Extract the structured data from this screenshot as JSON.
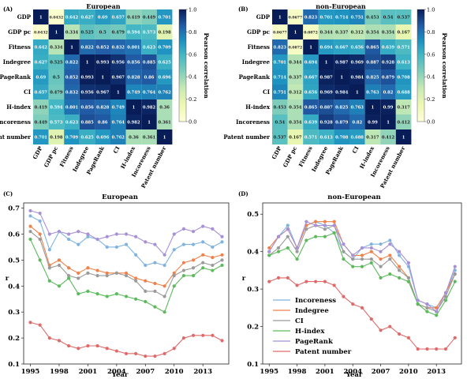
{
  "palette": {
    "low": "#ffffd9",
    "mid1": "#c7e9b4",
    "mid2": "#7fcdbb",
    "mid3": "#41b6c4",
    "mid4": "#1d91c0",
    "mid5": "#225ea8",
    "high": "#081d58",
    "line_colors": [
      "#7fb3e0",
      "#f0814a",
      "#9a9a9a",
      "#5cba5c",
      "#a890d8",
      "#e06a6a"
    ]
  },
  "chart_data": [
    {
      "panel": "(A)",
      "type": "heatmap",
      "title": "European",
      "labels": [
        "GDP",
        "GDP pc",
        "Fitness",
        "Indegree",
        "PageRank",
        "CI",
        "H-index",
        "Incoreness",
        "Patent number"
      ],
      "values": [
        [
          "1",
          "0.0432",
          "0.642",
          "0.627",
          "0.69",
          "0.657",
          "0.419",
          "0.449",
          "0.701"
        ],
        [
          "0.0432",
          "1",
          "0.334",
          "0.525",
          "0.5",
          "0.479",
          "0.594",
          "0.573",
          "0.198"
        ],
        [
          "0.642",
          "0.334",
          "1",
          "0.822",
          "0.852",
          "0.832",
          "0.801",
          "0.623",
          "0.709"
        ],
        [
          "0.627",
          "0.525",
          "0.822",
          "1",
          "0.993",
          "0.956",
          "0.856",
          "0.885",
          "0.625"
        ],
        [
          "0.69",
          "0.5",
          "0.852",
          "0.993",
          "1",
          "0.967",
          "0.828",
          "0.86",
          "0.696"
        ],
        [
          "0.657",
          "0.479",
          "0.832",
          "0.956",
          "0.967",
          "1",
          "0.749",
          "0.764",
          "0.762"
        ],
        [
          "0.419",
          "0.594",
          "0.801",
          "0.856",
          "0.828",
          "0.749",
          "1",
          "0.982",
          "0.36"
        ],
        [
          "0.449",
          "0.573",
          "0.623",
          "0.885",
          "0.86",
          "0.764",
          "0.982",
          "1",
          "0.361"
        ],
        [
          "0.701",
          "0.198",
          "0.709",
          "0.625",
          "0.696",
          "0.762",
          "0.36",
          "0.361",
          "1"
        ]
      ],
      "colorbar": {
        "label": "Pearson correlation",
        "ticks": [
          "0.0",
          "0.2",
          "0.4",
          "0.6",
          "0.8",
          "1.0"
        ],
        "range": [
          0,
          1
        ]
      }
    },
    {
      "panel": "(B)",
      "type": "heatmap",
      "title": "non-European",
      "labels": [
        "GDP",
        "GDP pc",
        "Fitness",
        "Indegree",
        "PageRank",
        "CI",
        "H-index",
        "Incoreness",
        "Patent number"
      ],
      "values": [
        [
          "1",
          "0.0677",
          "0.823",
          "0.701",
          "0.714",
          "0.751",
          "0.453",
          "0.54",
          "0.537"
        ],
        [
          "0.0677",
          "1",
          "0.0872",
          "0.344",
          "0.337",
          "0.312",
          "0.354",
          "0.354",
          "0.167"
        ],
        [
          "0.823",
          "0.0872",
          "1",
          "0.694",
          "0.667",
          "0.656",
          "0.865",
          "0.639",
          "0.571"
        ],
        [
          "0.701",
          "0.344",
          "0.694",
          "1",
          "0.987",
          "0.969",
          "0.887",
          "0.928",
          "0.613"
        ],
        [
          "0.714",
          "0.337",
          "0.667",
          "0.987",
          "1",
          "0.984",
          "0.825",
          "0.879",
          "0.708"
        ],
        [
          "0.751",
          "0.312",
          "0.656",
          "0.969",
          "0.984",
          "1",
          "0.763",
          "0.82",
          "0.688"
        ],
        [
          "0.453",
          "0.354",
          "0.865",
          "0.887",
          "0.825",
          "0.763",
          "1",
          "0.99",
          "0.317"
        ],
        [
          "0.54",
          "0.354",
          "0.639",
          "0.928",
          "0.879",
          "0.82",
          "0.99",
          "1",
          "0.412"
        ],
        [
          "0.537",
          "0.167",
          "0.571",
          "0.613",
          "0.708",
          "0.688",
          "0.317",
          "0.412",
          "1"
        ]
      ],
      "colorbar": {
        "label": "Pearson correlation",
        "ticks": [
          "0.0",
          "0.2",
          "0.4",
          "0.6",
          "0.8",
          "1.0"
        ],
        "range": [
          0,
          1
        ]
      }
    },
    {
      "panel": "(C)",
      "type": "line",
      "title": "European",
      "xlabel": "Year",
      "ylabel": "r",
      "xlim": [
        1994.3,
        2015.7
      ],
      "ylim": [
        0.1,
        0.72
      ],
      "xticks": [
        1995,
        1998,
        2001,
        2004,
        2007,
        2010,
        2013
      ],
      "yticks": [
        0.1,
        0.2,
        0.3,
        0.4,
        0.5,
        0.6,
        0.7
      ],
      "x": [
        1995,
        1996,
        1997,
        1998,
        1999,
        2000,
        2001,
        2002,
        2003,
        2004,
        2005,
        2006,
        2007,
        2008,
        2009,
        2010,
        2011,
        2012,
        2013,
        2014,
        2015
      ],
      "series": [
        {
          "name": "Incoreness",
          "values": [
            0.67,
            0.65,
            0.54,
            0.61,
            0.58,
            0.56,
            0.59,
            0.58,
            0.55,
            0.55,
            0.56,
            0.52,
            0.48,
            0.49,
            0.48,
            0.54,
            0.56,
            0.56,
            0.57,
            0.55,
            0.57
          ]
        },
        {
          "name": "Indegree",
          "values": [
            0.63,
            0.6,
            0.48,
            0.5,
            0.47,
            0.45,
            0.47,
            0.46,
            0.45,
            0.45,
            0.45,
            0.43,
            0.42,
            0.41,
            0.4,
            0.45,
            0.49,
            0.5,
            0.52,
            0.51,
            0.52
          ]
        },
        {
          "name": "CI",
          "values": [
            0.61,
            0.58,
            0.47,
            0.48,
            0.44,
            0.43,
            0.45,
            0.44,
            0.44,
            0.45,
            0.44,
            0.42,
            0.38,
            0.38,
            0.36,
            0.44,
            0.46,
            0.47,
            0.49,
            0.48,
            0.5
          ]
        },
        {
          "name": "H-index",
          "values": [
            0.58,
            0.5,
            0.42,
            0.4,
            0.43,
            0.37,
            0.38,
            0.37,
            0.36,
            0.37,
            0.36,
            0.35,
            0.34,
            0.32,
            0.3,
            0.4,
            0.44,
            0.44,
            0.47,
            0.46,
            0.48
          ]
        },
        {
          "name": "PageRank",
          "values": [
            0.69,
            0.68,
            0.6,
            0.61,
            0.6,
            0.61,
            0.6,
            0.58,
            0.59,
            0.6,
            0.6,
            0.59,
            0.57,
            0.56,
            0.52,
            0.6,
            0.62,
            0.61,
            0.63,
            0.62,
            0.59
          ]
        },
        {
          "name": "Patent number",
          "values": [
            0.26,
            0.25,
            0.2,
            0.19,
            0.17,
            0.16,
            0.17,
            0.17,
            0.16,
            0.15,
            0.14,
            0.14,
            0.13,
            0.13,
            0.14,
            0.16,
            0.2,
            0.21,
            0.21,
            0.21,
            0.19
          ]
        }
      ]
    },
    {
      "panel": "(D)",
      "type": "line",
      "title": "non-European",
      "xlabel": "Year",
      "ylabel": "r",
      "xlim": [
        1994.3,
        2015.7
      ],
      "ylim": [
        0.1,
        0.53
      ],
      "xticks": [
        1995,
        1998,
        2001,
        2004,
        2007,
        2010,
        2013
      ],
      "yticks": [
        0.1,
        0.2,
        0.3,
        0.4,
        0.5
      ],
      "legend": "lower-left",
      "x": [
        1995,
        1996,
        1997,
        1998,
        1999,
        2000,
        2001,
        2002,
        2003,
        2004,
        2005,
        2006,
        2007,
        2008,
        2009,
        2010,
        2011,
        2012,
        2013,
        2014,
        2015
      ],
      "series": [
        {
          "name": "Incoreness",
          "values": [
            0.4,
            0.44,
            0.47,
            0.41,
            0.47,
            0.48,
            0.47,
            0.45,
            0.4,
            0.38,
            0.41,
            0.42,
            0.42,
            0.43,
            0.39,
            0.36,
            0.27,
            0.26,
            0.25,
            0.29,
            0.35
          ]
        },
        {
          "name": "Indegree",
          "values": [
            0.41,
            0.44,
            0.46,
            0.41,
            0.47,
            0.48,
            0.48,
            0.48,
            0.42,
            0.39,
            0.39,
            0.4,
            0.38,
            0.39,
            0.36,
            0.33,
            0.26,
            0.25,
            0.25,
            0.29,
            0.34
          ]
        },
        {
          "name": "CI",
          "values": [
            0.39,
            0.41,
            0.44,
            0.4,
            0.46,
            0.47,
            0.46,
            0.47,
            0.4,
            0.38,
            0.38,
            0.38,
            0.36,
            0.38,
            0.35,
            0.33,
            0.26,
            0.25,
            0.24,
            0.28,
            0.34
          ]
        },
        {
          "name": "H-index",
          "values": [
            0.39,
            0.4,
            0.41,
            0.38,
            0.43,
            0.44,
            0.44,
            0.45,
            0.38,
            0.36,
            0.36,
            0.37,
            0.33,
            0.34,
            0.33,
            0.32,
            0.26,
            0.24,
            0.23,
            0.27,
            0.32
          ]
        },
        {
          "name": "PageRank",
          "values": [
            0.4,
            0.44,
            0.46,
            0.41,
            0.48,
            0.47,
            0.47,
            0.47,
            0.42,
            0.39,
            0.41,
            0.41,
            0.4,
            0.42,
            0.4,
            0.37,
            0.27,
            0.26,
            0.24,
            0.29,
            0.36
          ]
        },
        {
          "name": "Patent number",
          "values": [
            0.32,
            0.33,
            0.33,
            0.31,
            0.32,
            0.32,
            0.32,
            0.31,
            0.28,
            0.26,
            0.25,
            0.22,
            0.19,
            0.2,
            0.18,
            0.17,
            0.14,
            0.14,
            0.14,
            0.14,
            0.17
          ]
        }
      ]
    }
  ]
}
